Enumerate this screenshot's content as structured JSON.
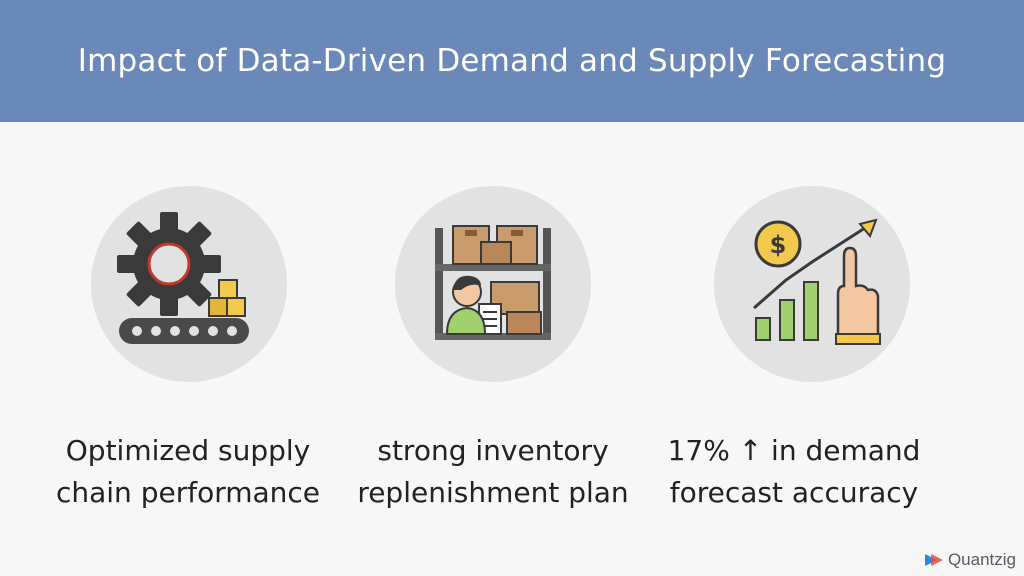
{
  "header": {
    "title": "Impact of Data-Driven Demand and Supply Forecasting"
  },
  "cards": [
    {
      "icon": "gear-conveyor-icon",
      "line1": "Optimized supply",
      "line2": "chain performance"
    },
    {
      "icon": "warehouse-worker-icon",
      "line1": "strong inventory",
      "line2": "replenishment plan"
    },
    {
      "icon": "growth-chart-icon",
      "line1": "17% ↑ in demand",
      "line2": "forecast accuracy"
    }
  ],
  "logo": {
    "text": "Quantzig"
  },
  "colors": {
    "header_bg": "#6a88b8",
    "circle_bg": "#e2e2e2",
    "accent_yellow": "#f2c94c",
    "accent_green": "#9fd26c",
    "dark": "#3a3a3a"
  }
}
